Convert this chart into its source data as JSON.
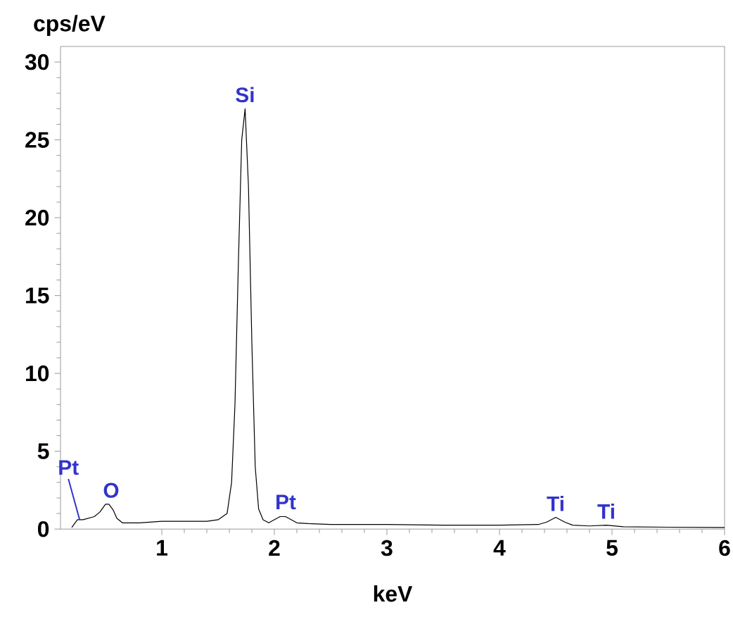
{
  "chart_data": {
    "type": "line",
    "xlabel": "keV",
    "ylabel": "cps/eV",
    "xlim": [
      0.1,
      6
    ],
    "ylim": [
      0,
      31
    ],
    "xticks": [
      1,
      2,
      3,
      4,
      5,
      6
    ],
    "yticks": [
      0,
      5,
      10,
      15,
      20,
      25,
      30
    ],
    "series": [
      {
        "color": "#000000",
        "x": [
          0.2,
          0.25,
          0.3,
          0.4,
          0.45,
          0.5,
          0.53,
          0.57,
          0.6,
          0.65,
          0.8,
          1.0,
          1.2,
          1.4,
          1.5,
          1.58,
          1.62,
          1.65,
          1.68,
          1.71,
          1.74,
          1.77,
          1.8,
          1.83,
          1.86,
          1.9,
          1.95,
          2.0,
          2.05,
          2.1,
          2.15,
          2.2,
          2.3,
          2.5,
          3.0,
          3.5,
          4.0,
          4.35,
          4.42,
          4.5,
          4.58,
          4.65,
          4.8,
          4.95,
          5.1,
          5.5,
          6.0
        ],
        "values": [
          0.1,
          0.6,
          0.6,
          0.8,
          1.1,
          1.6,
          1.6,
          1.2,
          0.7,
          0.4,
          0.4,
          0.5,
          0.5,
          0.5,
          0.6,
          1.0,
          3.0,
          8.0,
          17.0,
          25.0,
          27.0,
          22.0,
          12.0,
          4.0,
          1.3,
          0.6,
          0.4,
          0.6,
          0.8,
          0.8,
          0.6,
          0.4,
          0.35,
          0.3,
          0.3,
          0.25,
          0.25,
          0.3,
          0.45,
          0.75,
          0.45,
          0.25,
          0.2,
          0.25,
          0.15,
          0.12,
          0.1
        ]
      }
    ],
    "annotations": [
      {
        "text": "Pt",
        "x": 0.27,
        "y": 0.6
      },
      {
        "text": "O",
        "x": 0.55,
        "y": 1.6
      },
      {
        "text": "Si",
        "x": 1.74,
        "y": 27
      },
      {
        "text": "Pt",
        "x": 2.1,
        "y": 0.85
      },
      {
        "text": "Ti",
        "x": 4.5,
        "y": 0.75
      },
      {
        "text": "Ti",
        "x": 4.95,
        "y": 0.25
      }
    ]
  }
}
